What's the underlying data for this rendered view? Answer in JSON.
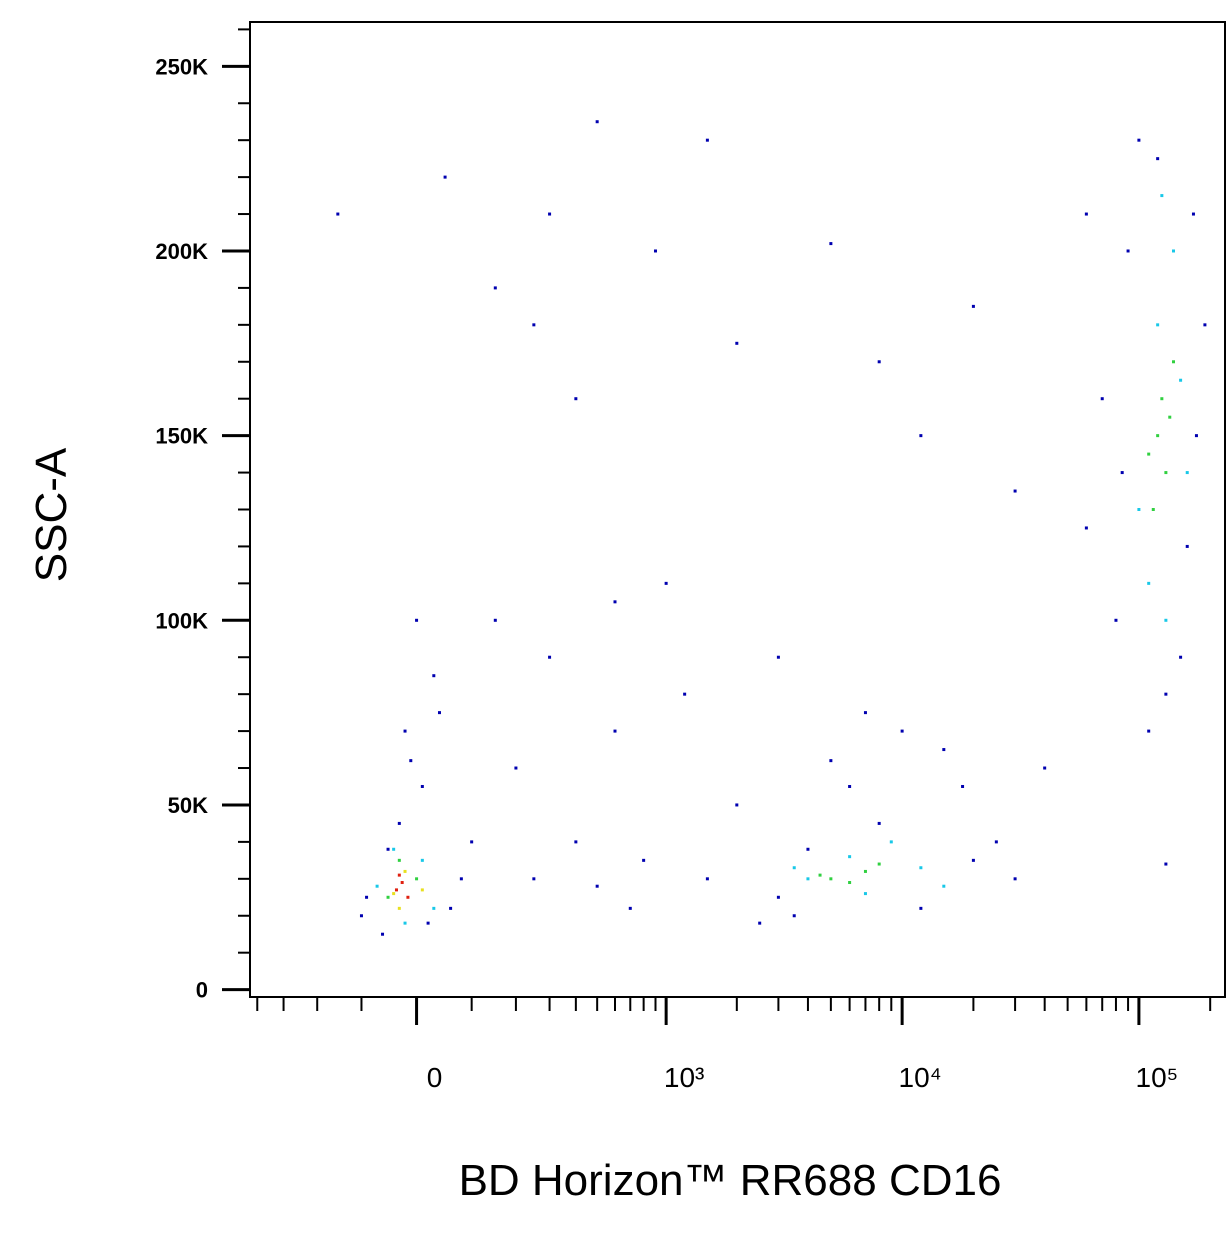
{
  "chart_data": {
    "type": "scatter",
    "x_label": "BD Horizon™ RR688 CD16",
    "y_label": "SSC-A",
    "xscale": "biexponential",
    "xlim": [
      -432,
      231000
    ],
    "ylim": [
      -2000,
      262000
    ],
    "xticks": [
      {
        "value": 0,
        "label": "0"
      },
      {
        "value": 1000,
        "label": "10³"
      },
      {
        "value": 10000,
        "label": "10⁴"
      },
      {
        "value": 100000,
        "label": "10⁵"
      }
    ],
    "xminorticks": [
      -400,
      -300,
      -200,
      -100,
      100,
      200,
      300,
      400,
      500,
      600,
      700,
      800,
      900,
      2000,
      3000,
      4000,
      5000,
      6000,
      7000,
      8000,
      9000,
      20000,
      30000,
      40000,
      50000,
      60000,
      70000,
      80000,
      90000,
      200000
    ],
    "yticks": [
      {
        "value": 0,
        "label": "0"
      },
      {
        "value": 50000,
        "label": "50K"
      },
      {
        "value": 100000,
        "label": "100K"
      },
      {
        "value": 150000,
        "label": "150K"
      },
      {
        "value": 200000,
        "label": "200K"
      },
      {
        "value": 250000,
        "label": "250K"
      }
    ],
    "yminorticks": [
      10000,
      20000,
      30000,
      40000,
      60000,
      70000,
      80000,
      90000,
      110000,
      120000,
      130000,
      140000,
      160000,
      170000,
      180000,
      190000,
      210000,
      220000,
      230000,
      240000,
      260000
    ],
    "series": [
      {
        "color": "#0000b0",
        "x": [
          -60,
          20,
          -90,
          80,
          -30,
          10,
          -20,
          30,
          0,
          -100,
          60,
          -50,
          100,
          -10,
          40,
          50,
          300,
          150,
          500,
          1500,
          900,
          250,
          -150,
          400,
          2000,
          8000,
          20000,
          5000,
          12000,
          300,
          600,
          200,
          1000,
          400,
          800,
          1500,
          250,
          2000,
          3000,
          600,
          150,
          1200,
          500,
          2500,
          700,
          3000,
          4000,
          6000,
          10000,
          15000,
          8000,
          20000,
          25000,
          3500,
          12000,
          18000,
          7000,
          5000,
          30000,
          80000,
          150000,
          100000,
          170000,
          70000,
          60000,
          190000,
          110000,
          130000,
          90000,
          160000,
          120000,
          85000,
          175000,
          60000,
          40000,
          30000,
          130000
        ],
        "y": [
          15000,
          18000,
          25000,
          30000,
          45000,
          55000,
          70000,
          85000,
          100000,
          20000,
          22000,
          38000,
          40000,
          62000,
          75000,
          220000,
          210000,
          190000,
          235000,
          230000,
          200000,
          180000,
          210000,
          160000,
          175000,
          170000,
          185000,
          202000,
          150000,
          90000,
          70000,
          60000,
          110000,
          40000,
          35000,
          30000,
          30000,
          50000,
          90000,
          105000,
          100000,
          80000,
          28000,
          18000,
          22000,
          25000,
          38000,
          55000,
          70000,
          65000,
          45000,
          35000,
          40000,
          20000,
          22000,
          55000,
          75000,
          62000,
          30000,
          100000,
          90000,
          230000,
          210000,
          160000,
          125000,
          180000,
          70000,
          80000,
          200000,
          120000,
          225000,
          140000,
          150000,
          210000,
          60000,
          135000,
          34000
        ]
      },
      {
        "color": "#18c8e8",
        "x": [
          -40,
          10,
          -70,
          30,
          -20,
          4000,
          6000,
          9000,
          12000,
          15000,
          3500,
          7000,
          110000,
          140000,
          120000,
          150000,
          100000,
          130000,
          160000,
          125000
        ],
        "y": [
          38000,
          35000,
          28000,
          22000,
          18000,
          30000,
          36000,
          40000,
          33000,
          28000,
          33000,
          26000,
          110000,
          200000,
          180000,
          165000,
          130000,
          100000,
          140000,
          215000
        ]
      },
      {
        "color": "#30d040",
        "x": [
          -30,
          0,
          -50,
          5000,
          6000,
          7000,
          4500,
          8000,
          120000,
          130000,
          125000,
          115000,
          135000,
          110000,
          140000
        ],
        "y": [
          35000,
          30000,
          25000,
          30000,
          29000,
          32000,
          31000,
          34000,
          150000,
          140000,
          160000,
          130000,
          155000,
          145000,
          170000
        ]
      },
      {
        "color": "#e8e020",
        "x": [
          -20,
          -40,
          10,
          -30
        ],
        "y": [
          32000,
          26000,
          27000,
          22000
        ]
      },
      {
        "color": "#e02010",
        "x": [
          -25,
          -35,
          -15,
          -30
        ],
        "y": [
          29000,
          27000,
          25000,
          31000
        ]
      }
    ]
  }
}
